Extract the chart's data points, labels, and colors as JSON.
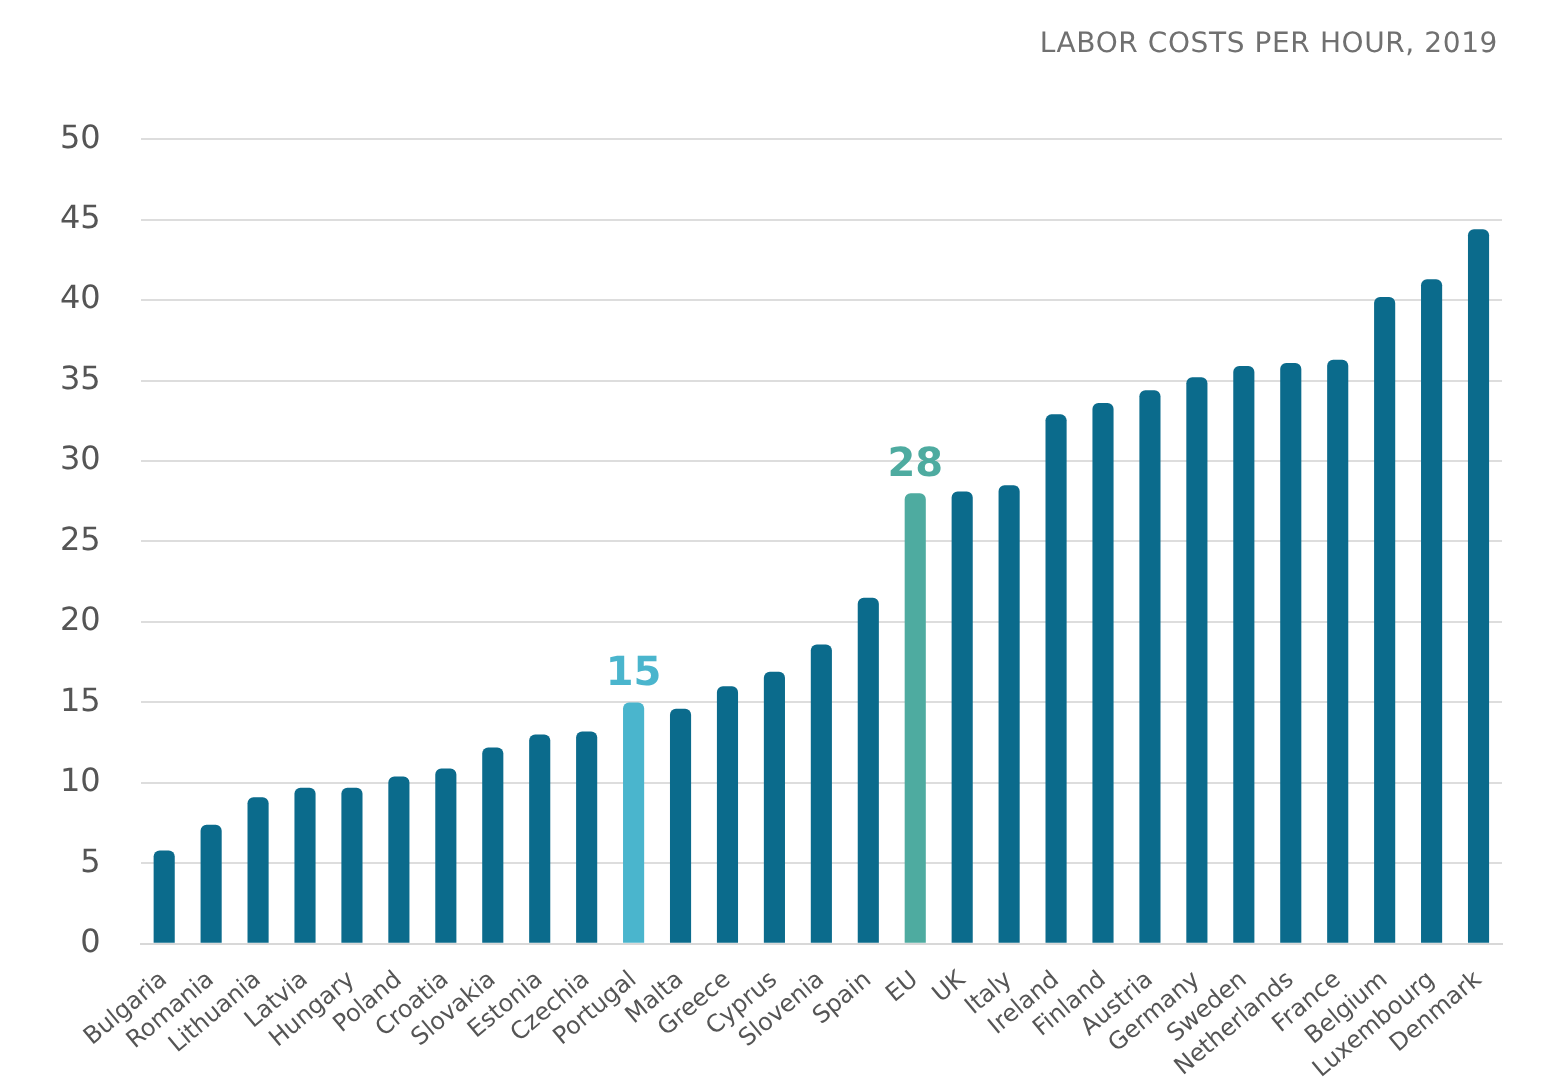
{
  "chart_data": {
    "type": "bar",
    "title": "LABOR COSTS PER HOUR, 2019",
    "categories": [
      "Bulgaria",
      "Romania",
      "Lithuania",
      "Latvia",
      "Hungary",
      "Poland",
      "Croatia",
      "Slovakia",
      "Estonia",
      "Czechia",
      "Portugal",
      "Malta",
      "Greece",
      "Cyprus",
      "Slovenia",
      "Spain",
      "EU",
      "UK",
      "Italy",
      "Ireland",
      "Finland",
      "Austria",
      "Germany",
      "Sweden",
      "Netherlands",
      "France",
      "Belgium",
      "Luxembourg",
      "Denmark"
    ],
    "values": [
      5.8,
      7.4,
      9.1,
      9.7,
      9.7,
      10.4,
      10.9,
      12.2,
      13.0,
      13.2,
      15,
      14.6,
      16.0,
      16.9,
      18.6,
      21.5,
      28,
      28.1,
      28.5,
      32.9,
      33.6,
      34.4,
      35.2,
      35.9,
      36.1,
      36.3,
      40.2,
      41.3,
      44.4
    ],
    "colors": [
      "#0b6b8c",
      "#0b6b8c",
      "#0b6b8c",
      "#0b6b8c",
      "#0b6b8c",
      "#0b6b8c",
      "#0b6b8c",
      "#0b6b8c",
      "#0b6b8c",
      "#0b6b8c",
      "#4ab5cd",
      "#0b6b8c",
      "#0b6b8c",
      "#0b6b8c",
      "#0b6b8c",
      "#0b6b8c",
      "#4eaba0",
      "#0b6b8c",
      "#0b6b8c",
      "#0b6b8c",
      "#0b6b8c",
      "#0b6b8c",
      "#0b6b8c",
      "#0b6b8c",
      "#0b6b8c",
      "#0b6b8c",
      "#0b6b8c",
      "#0b6b8c",
      "#0b6b8c"
    ],
    "value_labels": [
      null,
      null,
      null,
      null,
      null,
      null,
      null,
      null,
      null,
      null,
      "15",
      null,
      null,
      null,
      null,
      null,
      "28",
      null,
      null,
      null,
      null,
      null,
      null,
      null,
      null,
      null,
      null,
      null,
      null
    ],
    "ylim": [
      0,
      50
    ],
    "yticks": [
      0,
      5,
      10,
      15,
      20,
      25,
      30,
      35,
      40,
      45,
      50
    ],
    "grid": "y"
  }
}
